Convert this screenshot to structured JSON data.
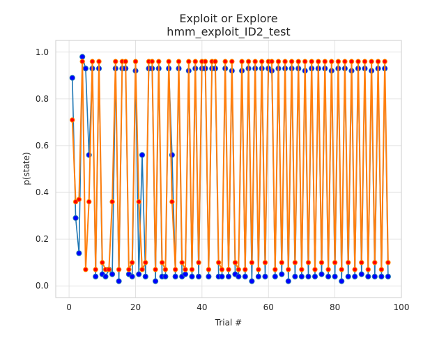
{
  "chart_data": {
    "type": "line",
    "title": "Exploit or Explore",
    "subtitle": "hmm_exploit_ID2_test",
    "xlabel": "Trial #",
    "ylabel": "p(state)",
    "xlim": [
      -4,
      100
    ],
    "ylim": [
      -0.05,
      1.05
    ],
    "xticks": [
      0,
      20,
      40,
      60,
      80,
      100
    ],
    "yticks": [
      0.0,
      0.2,
      0.4,
      0.6,
      0.8,
      1.0
    ],
    "grid": true,
    "legend": "none",
    "trials_per_unit": 2,
    "x_start": 1,
    "x_end": 96,
    "colors": {
      "series1_line": "#1f77b4",
      "series1_marker": "#0000ff",
      "series2_line": "#ff7f0e",
      "series2_marker": "#ff0000",
      "marker_edge": "#ff8c00"
    },
    "series": [
      {
        "values": [
          0.89,
          0.29,
          0.14,
          0.98,
          0.93,
          0.56,
          0.93,
          0.04,
          0.93,
          0.05,
          0.04,
          0.07,
          0.05,
          0.93,
          0.02,
          0.93,
          0.93,
          0.05,
          0.04,
          0.92,
          0.05,
          0.56,
          0.04,
          0.93,
          0.93,
          0.02,
          0.93,
          0.04,
          0.04,
          0.93,
          0.56,
          0.04,
          0.93,
          0.04,
          0.05,
          0.92,
          0.04,
          0.93,
          0.04,
          0.93,
          0.93,
          0.04,
          0.93,
          0.93,
          0.04,
          0.04,
          0.93,
          0.04,
          0.92,
          0.05,
          0.04,
          0.92,
          0.04,
          0.93,
          0.02,
          0.93,
          0.04,
          0.93,
          0.04,
          0.93,
          0.92,
          0.04,
          0.93,
          0.05,
          0.93,
          0.02,
          0.93,
          0.04,
          0.93,
          0.04,
          0.92,
          0.04,
          0.93,
          0.04,
          0.93,
          0.05,
          0.93,
          0.04,
          0.92,
          0.04,
          0.93,
          0.02,
          0.93,
          0.04,
          0.92,
          0.04,
          0.93,
          0.05,
          0.93,
          0.04,
          0.92,
          0.04,
          0.93,
          0.04,
          0.93,
          0.04
        ]
      },
      {
        "values": [
          0.71,
          0.36,
          0.37,
          0.96,
          0.07,
          0.36,
          0.96,
          0.07,
          0.96,
          0.1,
          0.07,
          0.07,
          0.36,
          0.96,
          0.07,
          0.96,
          0.96,
          0.07,
          0.1,
          0.96,
          0.36,
          0.07,
          0.1,
          0.96,
          0.96,
          0.07,
          0.96,
          0.1,
          0.07,
          0.96,
          0.36,
          0.07,
          0.96,
          0.1,
          0.07,
          0.96,
          0.07,
          0.96,
          0.1,
          0.96,
          0.96,
          0.07,
          0.96,
          0.96,
          0.1,
          0.07,
          0.96,
          0.07,
          0.96,
          0.1,
          0.07,
          0.96,
          0.07,
          0.96,
          0.1,
          0.96,
          0.07,
          0.96,
          0.1,
          0.96,
          0.96,
          0.07,
          0.96,
          0.1,
          0.96,
          0.07,
          0.96,
          0.1,
          0.96,
          0.07,
          0.96,
          0.1,
          0.96,
          0.07,
          0.96,
          0.1,
          0.96,
          0.07,
          0.96,
          0.1,
          0.96,
          0.07,
          0.96,
          0.1,
          0.96,
          0.07,
          0.96,
          0.1,
          0.96,
          0.07,
          0.96,
          0.1,
          0.96,
          0.07,
          0.96,
          0.1
        ]
      }
    ]
  }
}
